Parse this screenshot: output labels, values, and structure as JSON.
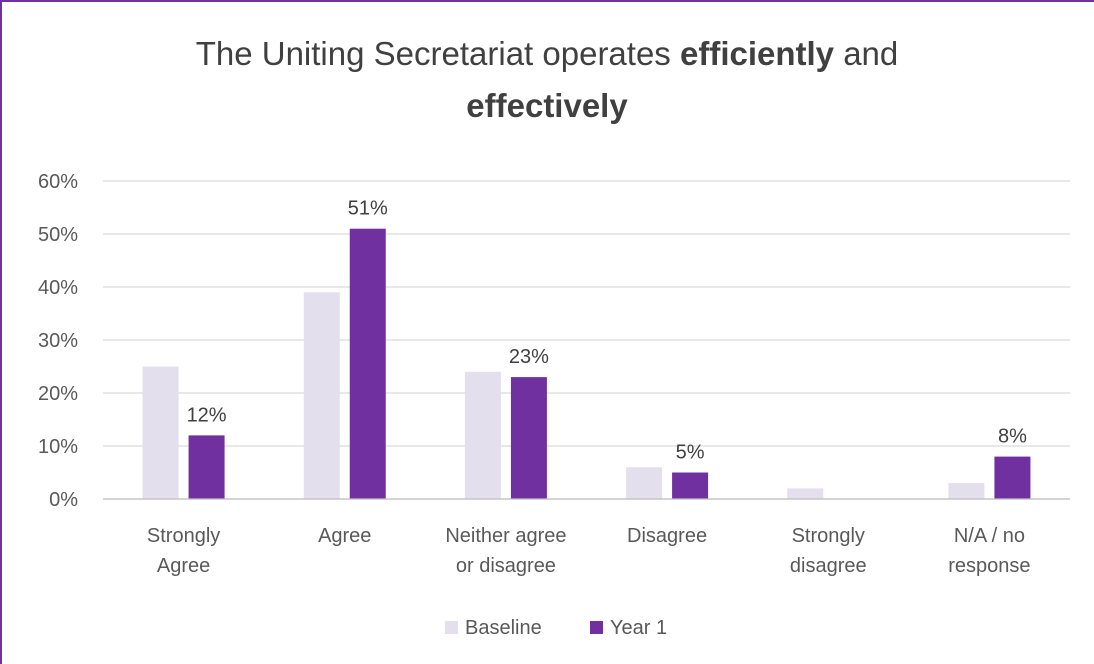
{
  "chart_data": {
    "type": "bar",
    "title": {
      "part1": "The Uniting Secretariat operates ",
      "bold1": "efficiently",
      "part2": " and",
      "bold2": "effectively"
    },
    "categories": [
      [
        "Strongly",
        "Agree"
      ],
      [
        "Agree"
      ],
      [
        "Neither agree",
        "or disagree"
      ],
      [
        "Disagree"
      ],
      [
        "Strongly",
        "disagree"
      ],
      [
        "N/A / no",
        "response"
      ]
    ],
    "series": [
      {
        "name": "Baseline",
        "color": "#e4dfec",
        "values": [
          25,
          39,
          24,
          6,
          2,
          3
        ],
        "labels": [
          "",
          "",
          "",
          "",
          "",
          ""
        ]
      },
      {
        "name": "Year 1",
        "color": "#7030a0",
        "values": [
          12,
          51,
          23,
          5,
          0,
          8
        ],
        "labels": [
          "12%",
          "51%",
          "23%",
          "5%",
          "",
          "8%"
        ]
      }
    ],
    "ylim": [
      0,
      60
    ],
    "yticks": [
      0,
      10,
      20,
      30,
      40,
      50,
      60
    ],
    "ytick_labels": [
      "0%",
      "10%",
      "20%",
      "30%",
      "40%",
      "50%",
      "60%"
    ],
    "grid": true,
    "legend_position": "bottom"
  }
}
